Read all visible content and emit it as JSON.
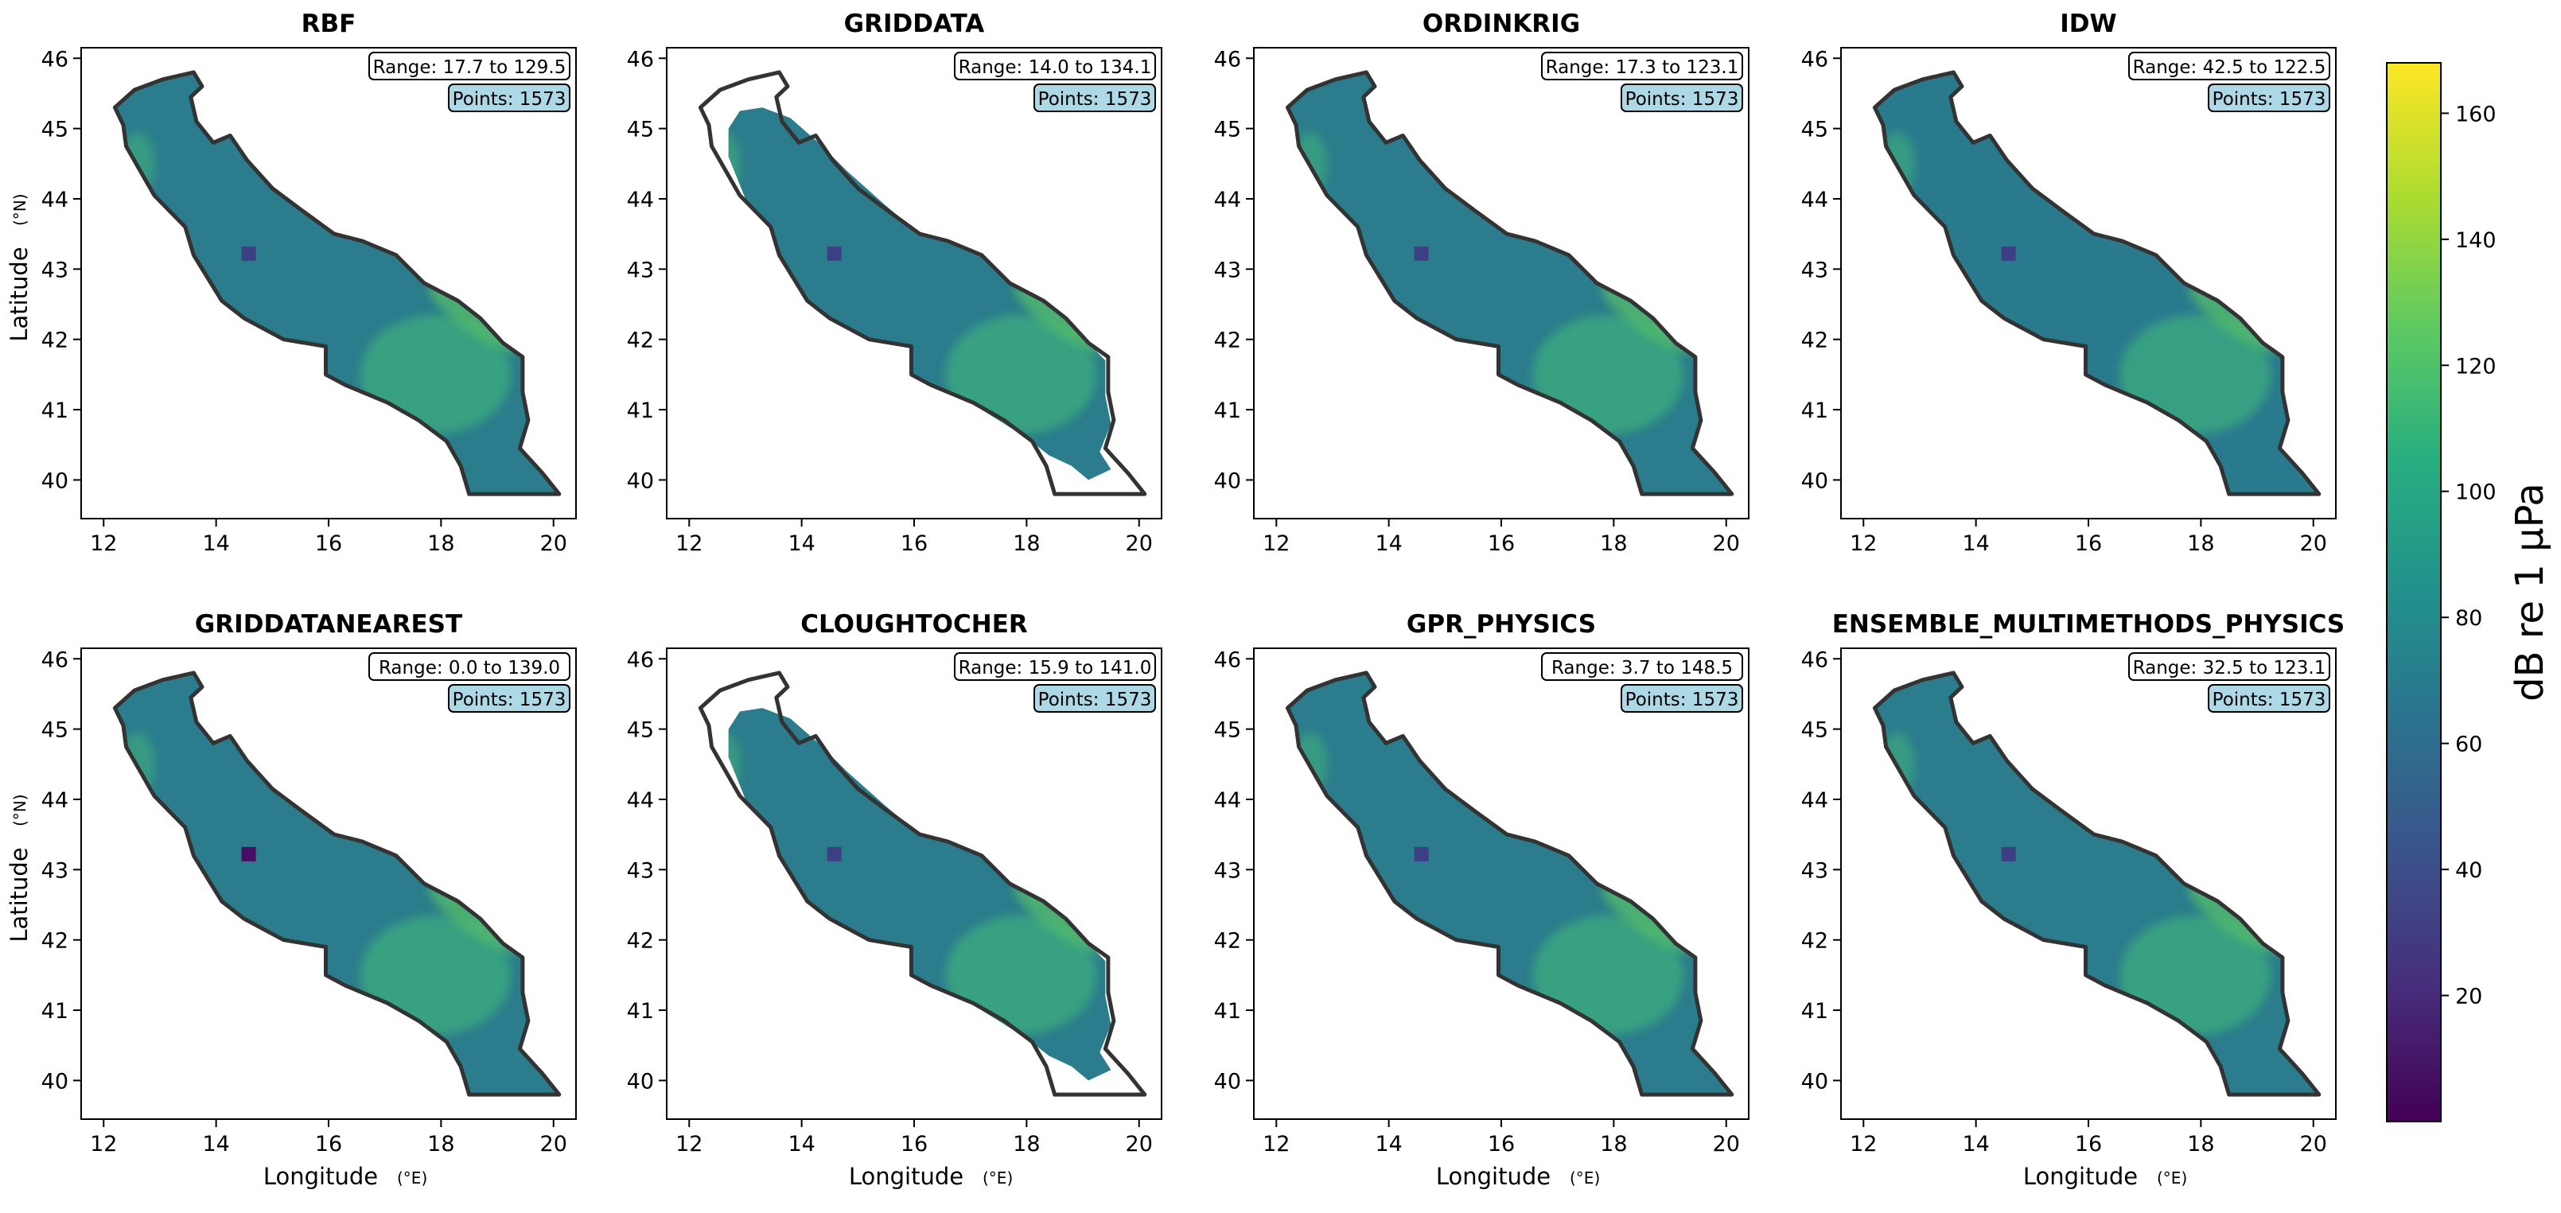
{
  "chart_data": {
    "type": "heatmap",
    "colormap": "viridis",
    "shared_x": {
      "label": "Longitude",
      "unit": "(°E)",
      "ticks": [
        "12",
        "14",
        "16",
        "18",
        "20"
      ],
      "lim": [
        11.6,
        20.4
      ]
    },
    "shared_y": {
      "label": "Latitude",
      "unit": "(°N)",
      "ticks": [
        "40",
        "41",
        "42",
        "43",
        "44",
        "45",
        "46"
      ],
      "lim": [
        39.45,
        46.15
      ]
    },
    "colorbar": {
      "label": "dB re 1 μPa",
      "ticks": [
        "20",
        "40",
        "60",
        "80",
        "100",
        "120",
        "140",
        "160"
      ],
      "range": [
        0,
        168
      ]
    },
    "panels": [
      {
        "title": "RBF",
        "range_text": "Range: 17.7 to 129.5",
        "points_text": "Points: 1573"
      },
      {
        "title": "GRIDDATA",
        "range_text": "Range: 14.0 to 134.1",
        "points_text": "Points: 1573"
      },
      {
        "title": "ORDINKRIG",
        "range_text": "Range: 17.3 to 123.1",
        "points_text": "Points: 1573"
      },
      {
        "title": "IDW",
        "range_text": "Range: 42.5 to 122.5",
        "points_text": "Points: 1573"
      },
      {
        "title": "GRIDDATANEAREST",
        "range_text": "Range: 0.0 to 139.0",
        "points_text": "Points: 1573"
      },
      {
        "title": "CLOUGHTOCHER",
        "range_text": "Range: 15.9 to 141.0",
        "points_text": "Points: 1573"
      },
      {
        "title": "GPR_PHYSICS",
        "range_text": "Range: 3.7 to 148.5",
        "points_text": "Points: 1573"
      },
      {
        "title": "ENSEMBLE_MULTIMETHODS_PHYSICS",
        "range_text": "Range: 32.5 to 123.1",
        "points_text": "Points: 1573"
      }
    ]
  }
}
